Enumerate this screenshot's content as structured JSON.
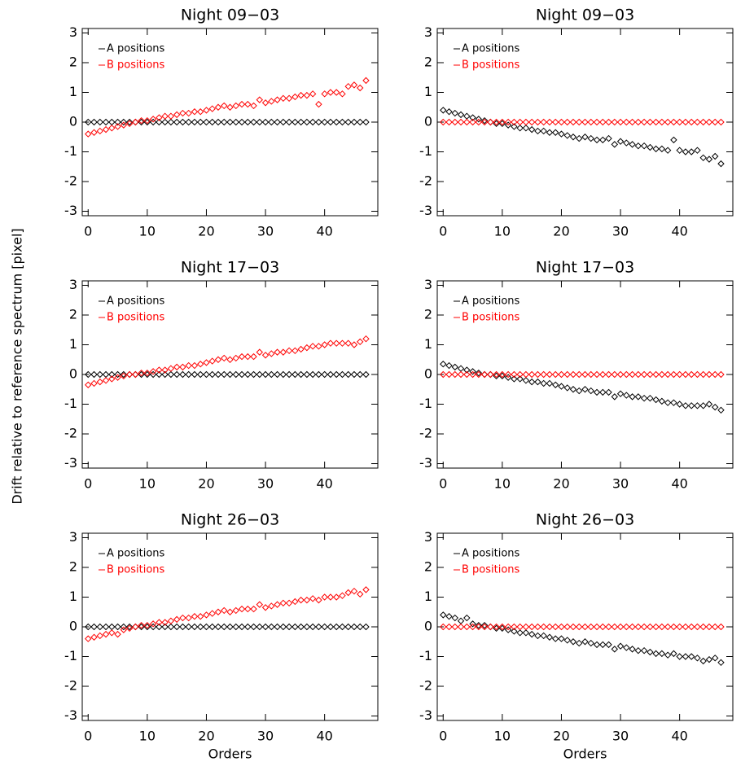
{
  "ylabel": "Drift relative to reference spectrum [pixel]",
  "chart_data": [
    {
      "type": "scatter",
      "title": "Night 09−03",
      "legend": "upper left",
      "x": [
        0,
        1,
        2,
        3,
        4,
        5,
        6,
        7,
        8,
        9,
        10,
        11,
        12,
        13,
        14,
        15,
        16,
        17,
        18,
        19,
        20,
        21,
        22,
        23,
        24,
        25,
        26,
        27,
        28,
        29,
        30,
        31,
        32,
        33,
        34,
        35,
        36,
        37,
        38,
        39,
        40,
        41,
        42,
        43,
        44,
        45,
        46,
        47
      ],
      "series": [
        {
          "name": "A positions",
          "color": "#000000",
          "values": [
            0,
            0,
            0,
            0,
            0,
            0,
            0,
            0,
            0,
            0,
            0,
            0,
            0,
            0,
            0,
            0,
            0,
            0,
            0,
            0,
            0,
            0,
            0,
            0,
            0,
            0,
            0,
            0,
            0,
            0,
            0,
            0,
            0,
            0,
            0,
            0,
            0,
            0,
            0,
            0,
            0,
            0,
            0,
            0,
            0,
            0,
            0,
            0
          ]
        },
        {
          "name": "B positions",
          "color": "#ff0000",
          "values": [
            -0.4,
            -0.35,
            -0.3,
            -0.25,
            -0.2,
            -0.15,
            -0.1,
            -0.05,
            0,
            0.05,
            0.05,
            0.1,
            0.15,
            0.2,
            0.2,
            0.25,
            0.3,
            0.3,
            0.35,
            0.35,
            0.4,
            0.45,
            0.5,
            0.55,
            0.5,
            0.55,
            0.6,
            0.6,
            0.55,
            0.75,
            0.65,
            0.7,
            0.75,
            0.8,
            0.8,
            0.85,
            0.9,
            0.9,
            0.95,
            0.6,
            0.95,
            1.0,
            1.0,
            0.95,
            1.2,
            1.25,
            1.15,
            1.4
          ]
        }
      ],
      "xlim": [
        -1,
        49
      ],
      "ylim": [
        -3.15,
        3.15
      ],
      "xticks": [
        0,
        10,
        20,
        30,
        40
      ],
      "yticks": [
        -3,
        -2,
        -1,
        0,
        1,
        2,
        3
      ]
    },
    {
      "type": "scatter",
      "title": "Night 09−03",
      "legend": "upper left",
      "x": [
        0,
        1,
        2,
        3,
        4,
        5,
        6,
        7,
        8,
        9,
        10,
        11,
        12,
        13,
        14,
        15,
        16,
        17,
        18,
        19,
        20,
        21,
        22,
        23,
        24,
        25,
        26,
        27,
        28,
        29,
        30,
        31,
        32,
        33,
        34,
        35,
        36,
        37,
        38,
        39,
        40,
        41,
        42,
        43,
        44,
        45,
        46,
        47
      ],
      "series": [
        {
          "name": "A positions",
          "color": "#000000",
          "values": [
            0.4,
            0.35,
            0.3,
            0.25,
            0.2,
            0.15,
            0.1,
            0.05,
            0,
            -0.05,
            -0.05,
            -0.1,
            -0.15,
            -0.2,
            -0.2,
            -0.25,
            -0.3,
            -0.3,
            -0.35,
            -0.35,
            -0.4,
            -0.45,
            -0.5,
            -0.55,
            -0.5,
            -0.55,
            -0.6,
            -0.6,
            -0.55,
            -0.75,
            -0.65,
            -0.7,
            -0.75,
            -0.8,
            -0.8,
            -0.85,
            -0.9,
            -0.9,
            -0.95,
            -0.6,
            -0.95,
            -1.0,
            -1.0,
            -0.95,
            -1.2,
            -1.25,
            -1.15,
            -1.4
          ]
        },
        {
          "name": "B positions",
          "color": "#ff0000",
          "values": [
            0,
            0,
            0,
            0,
            0,
            0,
            0,
            0,
            0,
            0,
            0,
            0,
            0,
            0,
            0,
            0,
            0,
            0,
            0,
            0,
            0,
            0,
            0,
            0,
            0,
            0,
            0,
            0,
            0,
            0,
            0,
            0,
            0,
            0,
            0,
            0,
            0,
            0,
            0,
            0,
            0,
            0,
            0,
            0,
            0,
            0,
            0,
            0
          ]
        }
      ],
      "xlim": [
        -1,
        49
      ],
      "ylim": [
        -3.15,
        3.15
      ],
      "xticks": [
        0,
        10,
        20,
        30,
        40
      ],
      "yticks": [
        -3,
        -2,
        -1,
        0,
        1,
        2,
        3
      ]
    },
    {
      "type": "scatter",
      "title": "Night 17−03",
      "legend": "upper left",
      "x": [
        0,
        1,
        2,
        3,
        4,
        5,
        6,
        7,
        8,
        9,
        10,
        11,
        12,
        13,
        14,
        15,
        16,
        17,
        18,
        19,
        20,
        21,
        22,
        23,
        24,
        25,
        26,
        27,
        28,
        29,
        30,
        31,
        32,
        33,
        34,
        35,
        36,
        37,
        38,
        39,
        40,
        41,
        42,
        43,
        44,
        45,
        46,
        47
      ],
      "series": [
        {
          "name": "A positions",
          "color": "#000000",
          "values": [
            0,
            0,
            0,
            0,
            0,
            0,
            0,
            0,
            0,
            0,
            0,
            0,
            0,
            0,
            0,
            0,
            0,
            0,
            0,
            0,
            0,
            0,
            0,
            0,
            0,
            0,
            0,
            0,
            0,
            0,
            0,
            0,
            0,
            0,
            0,
            0,
            0,
            0,
            0,
            0,
            0,
            0,
            0,
            0,
            0,
            0,
            0,
            0
          ]
        },
        {
          "name": "B positions",
          "color": "#ff0000",
          "values": [
            -0.35,
            -0.3,
            -0.25,
            -0.2,
            -0.15,
            -0.1,
            -0.05,
            0,
            0,
            0.05,
            0.05,
            0.1,
            0.15,
            0.15,
            0.2,
            0.25,
            0.25,
            0.3,
            0.3,
            0.35,
            0.4,
            0.45,
            0.5,
            0.55,
            0.5,
            0.55,
            0.6,
            0.6,
            0.6,
            0.75,
            0.65,
            0.7,
            0.75,
            0.75,
            0.8,
            0.8,
            0.85,
            0.9,
            0.95,
            0.95,
            1.0,
            1.05,
            1.05,
            1.05,
            1.05,
            1.0,
            1.1,
            1.2
          ]
        }
      ],
      "xlim": [
        -1,
        49
      ],
      "ylim": [
        -3.15,
        3.15
      ],
      "xticks": [
        0,
        10,
        20,
        30,
        40
      ],
      "yticks": [
        -3,
        -2,
        -1,
        0,
        1,
        2,
        3
      ]
    },
    {
      "type": "scatter",
      "title": "Night 17−03",
      "legend": "upper left",
      "x": [
        0,
        1,
        2,
        3,
        4,
        5,
        6,
        7,
        8,
        9,
        10,
        11,
        12,
        13,
        14,
        15,
        16,
        17,
        18,
        19,
        20,
        21,
        22,
        23,
        24,
        25,
        26,
        27,
        28,
        29,
        30,
        31,
        32,
        33,
        34,
        35,
        36,
        37,
        38,
        39,
        40,
        41,
        42,
        43,
        44,
        45,
        46,
        47
      ],
      "series": [
        {
          "name": "A positions",
          "color": "#000000",
          "values": [
            0.35,
            0.3,
            0.25,
            0.2,
            0.15,
            0.1,
            0.05,
            0,
            0,
            -0.05,
            -0.05,
            -0.1,
            -0.15,
            -0.15,
            -0.2,
            -0.25,
            -0.25,
            -0.3,
            -0.3,
            -0.35,
            -0.4,
            -0.45,
            -0.5,
            -0.55,
            -0.5,
            -0.55,
            -0.6,
            -0.6,
            -0.6,
            -0.75,
            -0.65,
            -0.7,
            -0.75,
            -0.75,
            -0.8,
            -0.8,
            -0.85,
            -0.9,
            -0.95,
            -0.95,
            -1.0,
            -1.05,
            -1.05,
            -1.05,
            -1.05,
            -1.0,
            -1.1,
            -1.2
          ]
        },
        {
          "name": "B positions",
          "color": "#ff0000",
          "values": [
            0,
            0,
            0,
            0,
            0,
            0,
            0,
            0,
            0,
            0,
            0,
            0,
            0,
            0,
            0,
            0,
            0,
            0,
            0,
            0,
            0,
            0,
            0,
            0,
            0,
            0,
            0,
            0,
            0,
            0,
            0,
            0,
            0,
            0,
            0,
            0,
            0,
            0,
            0,
            0,
            0,
            0,
            0,
            0,
            0,
            0,
            0,
            0
          ]
        }
      ],
      "xlim": [
        -1,
        49
      ],
      "ylim": [
        -3.15,
        3.15
      ],
      "xticks": [
        0,
        10,
        20,
        30,
        40
      ],
      "yticks": [
        -3,
        -2,
        -1,
        0,
        1,
        2,
        3
      ]
    },
    {
      "type": "scatter",
      "title": "Night 26−03",
      "legend": "upper left",
      "xlabel": "Orders",
      "x": [
        0,
        1,
        2,
        3,
        4,
        5,
        6,
        7,
        8,
        9,
        10,
        11,
        12,
        13,
        14,
        15,
        16,
        17,
        18,
        19,
        20,
        21,
        22,
        23,
        24,
        25,
        26,
        27,
        28,
        29,
        30,
        31,
        32,
        33,
        34,
        35,
        36,
        37,
        38,
        39,
        40,
        41,
        42,
        43,
        44,
        45,
        46,
        47
      ],
      "series": [
        {
          "name": "A positions",
          "color": "#000000",
          "values": [
            0,
            0,
            0,
            0,
            0,
            0,
            0,
            0,
            0,
            0,
            0,
            0,
            0,
            0,
            0,
            0,
            0,
            0,
            0,
            0,
            0,
            0,
            0,
            0,
            0,
            0,
            0,
            0,
            0,
            0,
            0,
            0,
            0,
            0,
            0,
            0,
            0,
            0,
            0,
            0,
            0,
            0,
            0,
            0,
            0,
            0,
            0,
            0
          ]
        },
        {
          "name": "B positions",
          "color": "#ff0000",
          "values": [
            -0.4,
            -0.35,
            -0.3,
            -0.25,
            -0.2,
            -0.25,
            -0.1,
            -0.05,
            0,
            0.05,
            0.05,
            0.1,
            0.15,
            0.15,
            0.2,
            0.25,
            0.3,
            0.3,
            0.35,
            0.35,
            0.4,
            0.45,
            0.5,
            0.55,
            0.5,
            0.55,
            0.6,
            0.6,
            0.6,
            0.75,
            0.65,
            0.7,
            0.75,
            0.8,
            0.8,
            0.85,
            0.9,
            0.9,
            0.95,
            0.9,
            1.0,
            1.0,
            1.0,
            1.05,
            1.15,
            1.2,
            1.1,
            1.25
          ]
        }
      ],
      "xlim": [
        -1,
        49
      ],
      "ylim": [
        -3.15,
        3.15
      ],
      "xticks": [
        0,
        10,
        20,
        30,
        40
      ],
      "yticks": [
        -3,
        -2,
        -1,
        0,
        1,
        2,
        3
      ]
    },
    {
      "type": "scatter",
      "title": "Night 26−03",
      "legend": "upper left",
      "xlabel": "Orders",
      "x": [
        0,
        1,
        2,
        3,
        4,
        5,
        6,
        7,
        8,
        9,
        10,
        11,
        12,
        13,
        14,
        15,
        16,
        17,
        18,
        19,
        20,
        21,
        22,
        23,
        24,
        25,
        26,
        27,
        28,
        29,
        30,
        31,
        32,
        33,
        34,
        35,
        36,
        37,
        38,
        39,
        40,
        41,
        42,
        43,
        44,
        45,
        46,
        47
      ],
      "series": [
        {
          "name": "A positions",
          "color": "#000000",
          "values": [
            0.4,
            0.35,
            0.3,
            0.2,
            0.3,
            0.1,
            0.05,
            0.05,
            0,
            -0.05,
            -0.05,
            -0.1,
            -0.15,
            -0.2,
            -0.2,
            -0.25,
            -0.3,
            -0.3,
            -0.35,
            -0.4,
            -0.4,
            -0.45,
            -0.5,
            -0.55,
            -0.5,
            -0.55,
            -0.6,
            -0.6,
            -0.6,
            -0.75,
            -0.65,
            -0.7,
            -0.75,
            -0.8,
            -0.8,
            -0.85,
            -0.9,
            -0.9,
            -0.95,
            -0.9,
            -1.0,
            -1.0,
            -1.0,
            -1.05,
            -1.15,
            -1.1,
            -1.05,
            -1.2
          ]
        },
        {
          "name": "B positions",
          "color": "#ff0000",
          "values": [
            0,
            0,
            0,
            0,
            0,
            0,
            0,
            0,
            0,
            0,
            0,
            0,
            0,
            0,
            0,
            0,
            0,
            0,
            0,
            0,
            0,
            0,
            0,
            0,
            0,
            0,
            0,
            0,
            0,
            0,
            0,
            0,
            0,
            0,
            0,
            0,
            0,
            0,
            0,
            0,
            0,
            0,
            0,
            0,
            0,
            0,
            0,
            0
          ]
        }
      ],
      "xlim": [
        -1,
        49
      ],
      "ylim": [
        -3.15,
        3.15
      ],
      "xticks": [
        0,
        10,
        20,
        30,
        40
      ],
      "yticks": [
        -3,
        -2,
        -1,
        0,
        1,
        2,
        3
      ]
    }
  ]
}
